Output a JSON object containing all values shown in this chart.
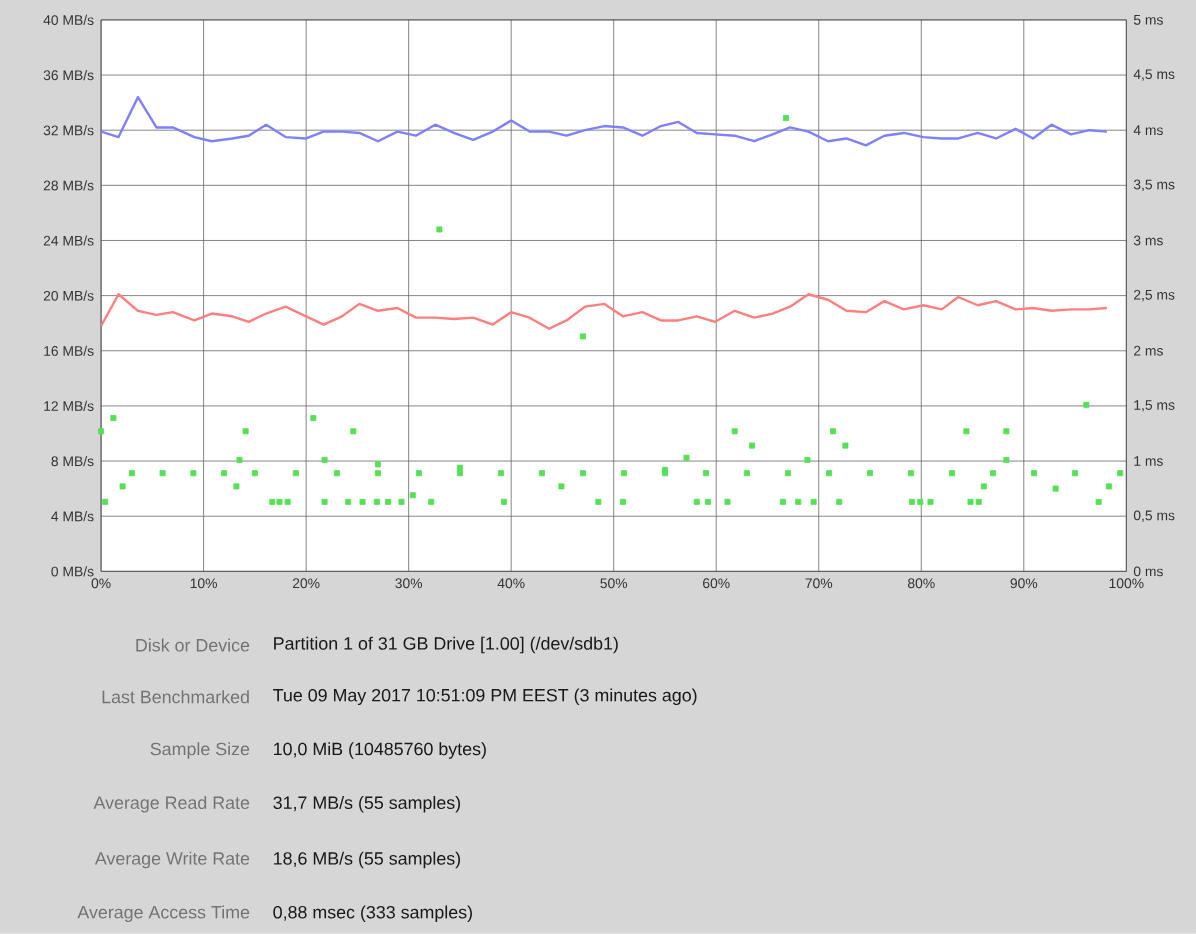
{
  "chart_data": {
    "type": "line",
    "grid": true,
    "xlim": [
      0,
      100
    ],
    "xticks": [
      {
        "value": 0,
        "label": "0%"
      },
      {
        "value": 10,
        "label": "10%"
      },
      {
        "value": 20,
        "label": "20%"
      },
      {
        "value": 30,
        "label": "30%"
      },
      {
        "value": 40,
        "label": "40%"
      },
      {
        "value": 50,
        "label": "50%"
      },
      {
        "value": 60,
        "label": "60%"
      },
      {
        "value": 70,
        "label": "70%"
      },
      {
        "value": 80,
        "label": "80%"
      },
      {
        "value": 90,
        "label": "90%"
      },
      {
        "value": 100,
        "label": "100%"
      }
    ],
    "ylim": [
      0,
      40
    ],
    "yticks": [
      {
        "value": 0,
        "label": "0 MB/s"
      },
      {
        "value": 4,
        "label": "4 MB/s"
      },
      {
        "value": 8,
        "label": "8 MB/s"
      },
      {
        "value": 12,
        "label": "12 MB/s"
      },
      {
        "value": 16,
        "label": "16 MB/s"
      },
      {
        "value": 20,
        "label": "20 MB/s"
      },
      {
        "value": 24,
        "label": "24 MB/s"
      },
      {
        "value": 28,
        "label": "28 MB/s"
      },
      {
        "value": 32,
        "label": "32 MB/s"
      },
      {
        "value": 36,
        "label": "36 MB/s"
      },
      {
        "value": 40,
        "label": "40 MB/s"
      }
    ],
    "y2lim": [
      0,
      5
    ],
    "y2ticks": [
      {
        "value": 0,
        "label": "0 ms"
      },
      {
        "value": 0.5,
        "label": "0,5 ms"
      },
      {
        "value": 1,
        "label": "1 ms"
      },
      {
        "value": 1.5,
        "label": "1,5 ms"
      },
      {
        "value": 2,
        "label": "2 ms"
      },
      {
        "value": 2.5,
        "label": "2,5 ms"
      },
      {
        "value": 3,
        "label": "3 ms"
      },
      {
        "value": 3.5,
        "label": "3,5 ms"
      },
      {
        "value": 4,
        "label": "4 ms"
      },
      {
        "value": 4.5,
        "label": "4,5 ms"
      },
      {
        "value": 5,
        "label": "5 ms"
      }
    ],
    "series": [
      {
        "color": "#7f7fff",
        "x": [
          0,
          1.7,
          3.6,
          5.4,
          7.0,
          9.1,
          10.8,
          12.8,
          14.4,
          16.1,
          18.0,
          20.0,
          21.7,
          23.5,
          25.2,
          27.0,
          28.9,
          30.7,
          32.6,
          34.4,
          36.3,
          38.2,
          40.0,
          41.8,
          43.7,
          45.4,
          47.2,
          49.1,
          50.9,
          52.8,
          54.6,
          56.3,
          58.1,
          59.9,
          61.8,
          63.7,
          65.5,
          67.2,
          69.0,
          70.9,
          72.7,
          74.6,
          76.4,
          78.3,
          80.2,
          82.0,
          83.6,
          85.5,
          87.3,
          89.2,
          90.9,
          92.7,
          94.6,
          96.4,
          98.1
        ],
        "values": [
          31.9,
          31.5,
          34.4,
          32.2,
          32.2,
          31.5,
          31.2,
          31.4,
          31.6,
          32.4,
          31.5,
          31.4,
          31.9,
          31.9,
          31.8,
          31.2,
          31.9,
          31.6,
          32.4,
          31.8,
          31.3,
          31.9,
          32.7,
          31.9,
          31.9,
          31.6,
          32.0,
          32.3,
          32.2,
          31.6,
          32.3,
          32.6,
          31.8,
          31.7,
          31.6,
          31.2,
          31.7,
          32.2,
          31.9,
          31.2,
          31.4,
          30.9,
          31.6,
          31.8,
          31.5,
          31.4,
          31.4,
          31.8,
          31.4,
          32.1,
          31.4,
          32.4,
          31.7,
          32.0,
          31.9
        ]
      },
      {
        "color": "#ff7f7f",
        "x": [
          0,
          1.7,
          3.6,
          5.4,
          7.0,
          9.1,
          10.8,
          12.8,
          14.4,
          16.1,
          18.0,
          20.0,
          21.7,
          23.5,
          25.2,
          27.0,
          28.9,
          30.7,
          32.6,
          34.4,
          36.3,
          38.2,
          40.0,
          41.8,
          43.7,
          45.4,
          47.2,
          49.1,
          50.9,
          52.8,
          54.6,
          56.3,
          58.1,
          59.9,
          61.8,
          63.7,
          65.5,
          67.2,
          69.0,
          70.9,
          72.7,
          74.6,
          76.4,
          78.3,
          80.2,
          82.0,
          83.6,
          85.5,
          87.3,
          89.2,
          90.9,
          92.7,
          94.6,
          96.4,
          98.1
        ],
        "values": [
          17.8,
          20.1,
          18.9,
          18.6,
          18.8,
          18.2,
          18.7,
          18.5,
          18.1,
          18.7,
          19.2,
          18.5,
          17.9,
          18.5,
          19.4,
          18.9,
          19.1,
          18.4,
          18.4,
          18.3,
          18.4,
          17.9,
          18.8,
          18.4,
          17.6,
          18.2,
          19.2,
          19.4,
          18.5,
          18.8,
          18.2,
          18.2,
          18.5,
          18.1,
          18.9,
          18.4,
          18.7,
          19.2,
          20.1,
          19.7,
          18.9,
          18.8,
          19.6,
          19.0,
          19.3,
          19.0,
          19.9,
          19.3,
          19.6,
          19.0,
          19.1,
          18.9,
          19.0,
          19.0,
          19.1
        ]
      },
      {
        "type": "scatter",
        "axis": "y2",
        "marker": "square",
        "color": "#55e055",
        "x": [
          0,
          1.2,
          0.4,
          2.1,
          13.2,
          14.1,
          13.5,
          16.7,
          17.4,
          18.2,
          20.7,
          21.8,
          21.8,
          24.1,
          24.6,
          25.5,
          27.0,
          26.9,
          28.0,
          29.3,
          30.4,
          32.2,
          35.0,
          39.3,
          44.9,
          47.0,
          48.5,
          50.9,
          55.0,
          57.1,
          58.1,
          59.2,
          61.1,
          61.8,
          63.5,
          66.5,
          68.0,
          68.9,
          69.5,
          71.4,
          72.0,
          72.6,
          79.1,
          79.9,
          80.9,
          84.4,
          84.8,
          85.6,
          86.1,
          88.3,
          88.3,
          93.1,
          96.1,
          97.3,
          98.3,
          99.4,
          66.8,
          33.0,
          3,
          6,
          9,
          12,
          15,
          19,
          23,
          27,
          31,
          35,
          39,
          43,
          47,
          51,
          55,
          59,
          63,
          67,
          71,
          75,
          79,
          83,
          87,
          91,
          95
        ],
        "values": [
          1.27,
          1.39,
          0.63,
          0.77,
          0.77,
          1.27,
          1.01,
          0.63,
          0.63,
          0.63,
          1.39,
          1.01,
          0.63,
          0.63,
          1.27,
          0.63,
          0.97,
          0.63,
          0.63,
          0.63,
          0.69,
          0.63,
          0.94,
          0.63,
          0.77,
          2.13,
          0.63,
          0.63,
          0.92,
          1.03,
          0.63,
          0.63,
          0.63,
          1.27,
          1.14,
          0.63,
          0.63,
          1.01,
          0.63,
          1.27,
          0.63,
          1.14,
          0.63,
          0.63,
          0.63,
          1.27,
          0.63,
          0.63,
          0.77,
          1.27,
          1.01,
          0.75,
          1.51,
          0.63,
          0.77,
          0.89,
          4.11,
          3.1,
          0.89,
          0.89,
          0.89,
          0.89,
          0.89,
          0.89,
          0.89,
          0.89,
          0.89,
          0.89,
          0.89,
          0.89,
          0.89,
          0.89,
          0.89,
          0.89,
          0.89,
          0.89,
          0.89,
          0.89,
          0.89,
          0.89,
          0.89,
          0.89,
          0.89
        ]
      }
    ],
    "annotations": [
      "Disk or Device",
      "Partition 1 of 31 GB Drive [1.00] (/dev/sdb1)",
      "Last Benchmarked",
      "Tue 09 May 2017 10:51:09 PM EEST (3 minutes ago)",
      "Sample Size",
      "10,0 MiB (10485760 bytes)",
      "Average Read Rate",
      "31,7 MB/s (55 samples)",
      "Average Write Rate",
      "18,6 MB/s (55 samples)",
      "Average Access Time",
      "0,88 msec (333 samples)"
    ]
  }
}
